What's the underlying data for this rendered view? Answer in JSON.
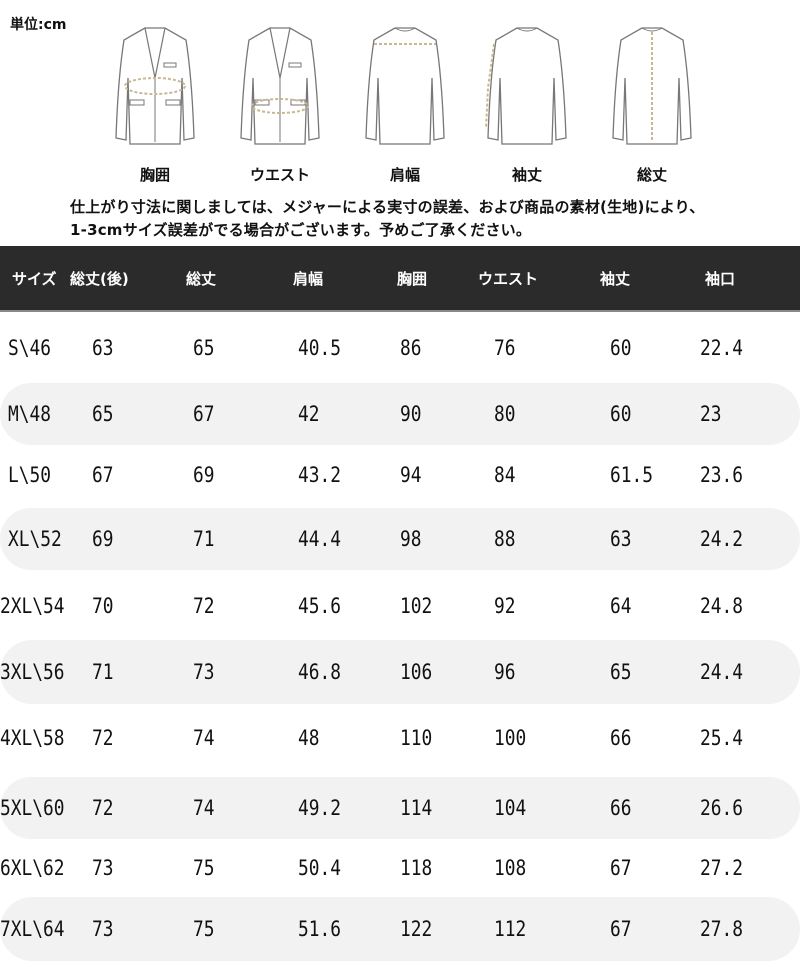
{
  "unit_label": "単位:cm",
  "diagram_labels": [
    "胸囲",
    "ウエスト",
    "肩幅",
    "袖丈",
    "総丈"
  ],
  "note": [
    "仕上がり寸法に関しましては、メジャーによる実寸の誤差、および商品の素材(生地)により、",
    "1-3cmサイズ誤差がでる場合がございます。予めご了承ください。"
  ],
  "colors": {
    "header_bg": "#2b2b2b",
    "shade_row": "#f2f2f2",
    "measure_line": "#c8b896"
  },
  "table": {
    "headers": [
      "サイズ",
      "総丈(後)",
      "総丈",
      "肩幅",
      "胸囲",
      "ウエスト",
      "袖丈",
      "袖口"
    ],
    "rows": [
      [
        "S\\46",
        "63",
        "65",
        "40.5",
        "86",
        "76",
        "60",
        "22.4"
      ],
      [
        "M\\48",
        "65",
        "67",
        "42",
        "90",
        "80",
        "60",
        "23"
      ],
      [
        "L\\50",
        "67",
        "69",
        "43.2",
        "94",
        "84",
        "61.5",
        "23.6"
      ],
      [
        "XL\\52",
        "69",
        "71",
        "44.4",
        "98",
        "88",
        "63",
        "24.2"
      ],
      [
        "2XL\\54",
        "70",
        "72",
        "45.6",
        "102",
        "92",
        "64",
        "24.8"
      ],
      [
        "3XL\\56",
        "71",
        "73",
        "46.8",
        "106",
        "96",
        "65",
        "24.4"
      ],
      [
        "4XL\\58",
        "72",
        "74",
        "48",
        "110",
        "100",
        "66",
        "25.4"
      ],
      [
        "5XL\\60",
        "72",
        "74",
        "49.2",
        "114",
        "104",
        "66",
        "26.6"
      ],
      [
        "6XL\\62",
        "73",
        "75",
        "50.4",
        "118",
        "108",
        "67",
        "27.2"
      ],
      [
        "7XL\\64",
        "73",
        "75",
        "51.6",
        "122",
        "112",
        "67",
        "27.8"
      ]
    ]
  }
}
